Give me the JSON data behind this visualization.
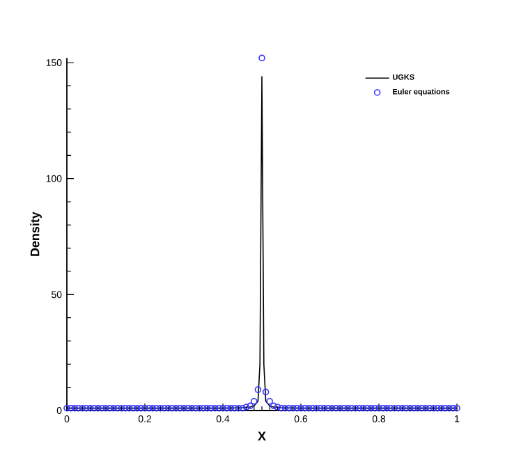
{
  "chart_data": {
    "type": "line",
    "xlabel": "X",
    "ylabel": "Density",
    "xlim": [
      0,
      1
    ],
    "ylim": [
      0,
      152
    ],
    "xticks": [
      0,
      0.2,
      0.4,
      0.6,
      0.8,
      1
    ],
    "yticks": [
      0,
      50,
      100,
      150
    ],
    "grid": false,
    "legend": "top right",
    "series": [
      {
        "name": "UGKS",
        "color": "#000000",
        "marker": "none",
        "line_style": "solid",
        "x": [
          0,
          0.1,
          0.2,
          0.3,
          0.4,
          0.45,
          0.47,
          0.48,
          0.49,
          0.495,
          0.5,
          0.505,
          0.51,
          0.52,
          0.53,
          0.55,
          0.6,
          0.7,
          0.8,
          0.9,
          1
        ],
        "values": [
          1,
          1,
          1,
          1,
          1,
          1.2,
          1.5,
          2,
          4,
          20,
          144,
          20,
          4,
          2,
          1.5,
          1.2,
          1,
          1,
          1,
          1,
          1
        ]
      },
      {
        "name": "Euler equations",
        "type": "scatter",
        "color": "#3333ff",
        "marker": "circle",
        "x": [
          0,
          0.01,
          0.02,
          0.03,
          0.04,
          0.05,
          0.06,
          0.07,
          0.08,
          0.09,
          0.1,
          0.11,
          0.12,
          0.13,
          0.14,
          0.15,
          0.16,
          0.17,
          0.18,
          0.19,
          0.2,
          0.21,
          0.22,
          0.23,
          0.24,
          0.25,
          0.26,
          0.27,
          0.28,
          0.29,
          0.3,
          0.31,
          0.32,
          0.33,
          0.34,
          0.35,
          0.36,
          0.37,
          0.38,
          0.39,
          0.4,
          0.41,
          0.42,
          0.43,
          0.44,
          0.45,
          0.46,
          0.47,
          0.48,
          0.49,
          0.5,
          0.51,
          0.52,
          0.53,
          0.54,
          0.55,
          0.56,
          0.57,
          0.58,
          0.59,
          0.6,
          0.61,
          0.62,
          0.63,
          0.64,
          0.65,
          0.66,
          0.67,
          0.68,
          0.69,
          0.7,
          0.71,
          0.72,
          0.73,
          0.74,
          0.75,
          0.76,
          0.77,
          0.78,
          0.79,
          0.8,
          0.81,
          0.82,
          0.83,
          0.84,
          0.85,
          0.86,
          0.87,
          0.88,
          0.89,
          0.9,
          0.91,
          0.92,
          0.93,
          0.94,
          0.95,
          0.96,
          0.97,
          0.98,
          0.99,
          1
        ],
        "values": [
          1,
          1,
          1,
          1,
          1,
          1,
          1,
          1,
          1,
          1,
          1,
          1,
          1,
          1,
          1,
          1,
          1,
          1,
          1,
          1,
          1,
          1,
          1,
          1,
          1,
          1,
          1,
          1,
          1,
          1,
          1,
          1,
          1,
          1,
          1,
          1,
          1,
          1,
          1,
          1,
          1,
          1,
          1,
          1,
          1,
          1,
          1.5,
          2,
          4,
          9,
          152,
          8,
          4,
          2,
          1.5,
          1,
          1,
          1,
          1,
          1,
          1,
          1,
          1,
          1,
          1,
          1,
          1,
          1,
          1,
          1,
          1,
          1,
          1,
          1,
          1,
          1,
          1,
          1,
          1,
          1,
          1,
          1,
          1,
          1,
          1,
          1,
          1,
          1,
          1,
          1,
          1,
          1,
          1,
          1,
          1,
          1,
          1,
          1,
          1,
          1,
          1
        ]
      }
    ]
  }
}
